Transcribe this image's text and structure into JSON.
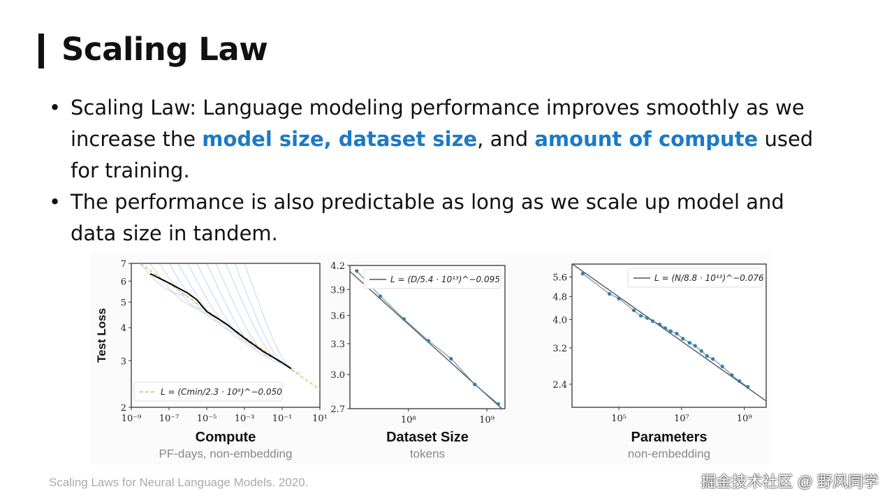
{
  "slide": {
    "title": "Scaling Law",
    "bullets": [
      {
        "pre": "Scaling Law: Language modeling performance improves smoothly as we increase the ",
        "hl1": "model size, dataset size",
        "mid": ", and ",
        "hl2": "amount of compute",
        "post": " used for training."
      },
      {
        "pre": "The performance is also predictable as long as we scale up model and data size in tandem."
      }
    ],
    "footer": "Scaling Laws for Neural Language Models. 2020.",
    "watermark": "掘金技术社区 @ 野风同学",
    "highlight_color": "#1a7ac8"
  },
  "chart_data": [
    {
      "type": "line",
      "title": "",
      "xlabel": "Compute",
      "xsublabel": "PF-days, non-embedding",
      "ylabel": "Test Loss",
      "xscale": "log",
      "yscale": "log",
      "xlim": [
        1e-09,
        10
      ],
      "ylim": [
        2,
        7
      ],
      "xticks": [
        {
          "v": 1e-09,
          "label": "10⁻⁹"
        },
        {
          "v": 1e-07,
          "label": "10⁻⁷"
        },
        {
          "v": 1e-05,
          "label": "10⁻⁵"
        },
        {
          "v": 0.001,
          "label": "10⁻³"
        },
        {
          "v": 0.1,
          "label": "10⁻¹"
        },
        {
          "v": 10,
          "label": "10¹"
        }
      ],
      "yticks": [
        {
          "v": 2,
          "label": "2"
        },
        {
          "v": 3,
          "label": "3"
        },
        {
          "v": 4,
          "label": "4"
        },
        {
          "v": 5,
          "label": "5"
        },
        {
          "v": 6,
          "label": "6"
        },
        {
          "v": 7,
          "label": "7"
        }
      ],
      "legend": {
        "label": "L = (Cmin/2.3 · 10⁸)^−0.050",
        "placement": "lower-left"
      },
      "fit": {
        "a": 230000000.0,
        "exp": -0.05,
        "color": "#e8b84a"
      },
      "frontier": {
        "x": [
          1e-08,
          1e-07,
          1e-06,
          3e-06,
          1e-05,
          0.0001,
          0.001,
          0.01,
          0.1,
          0.3
        ],
        "y": [
          6.4,
          5.9,
          5.4,
          5.1,
          4.6,
          4.15,
          3.65,
          3.25,
          2.95,
          2.8
        ],
        "color": "#000000"
      },
      "learning_curves": [
        [
          3e-09,
          7,
          1e-06,
          5.3
        ],
        [
          1e-08,
          7,
          1e-05,
          4.7
        ],
        [
          3e-08,
          7,
          5e-05,
          4.4
        ],
        [
          1e-07,
          7,
          0.0002,
          4.1
        ],
        [
          3e-07,
          7,
          0.0008,
          3.8
        ],
        [
          1e-06,
          7,
          0.003,
          3.5
        ],
        [
          3e-06,
          7,
          0.01,
          3.3
        ],
        [
          1e-05,
          7,
          0.03,
          3.1
        ],
        [
          3e-05,
          7,
          0.1,
          2.95
        ],
        [
          0.0001,
          7,
          0.3,
          2.85
        ],
        [
          0.0003,
          7,
          0.5,
          2.8
        ],
        [
          0.001,
          7,
          1,
          2.7
        ]
      ],
      "curve_color": "#8fb4d8"
    },
    {
      "type": "line",
      "xlabel": "Dataset Size",
      "xsublabel": "tokens",
      "xscale": "log",
      "yscale": "log",
      "xlim": [
        18000000.0,
        1700000000.0
      ],
      "ylim": [
        2.7,
        4.2
      ],
      "xticks": [
        {
          "v": 100000000.0,
          "label": "10⁸"
        },
        {
          "v": 1000000000.0,
          "label": "10⁹"
        }
      ],
      "yticks": [
        {
          "v": 2.7,
          "label": "2.7"
        },
        {
          "v": 3.0,
          "label": "3.0"
        },
        {
          "v": 3.3,
          "label": "3.3"
        },
        {
          "v": 3.6,
          "label": "3.6"
        },
        {
          "v": 3.9,
          "label": "3.9"
        },
        {
          "v": 4.2,
          "label": "4.2"
        }
      ],
      "legend": {
        "label": "L = (D/5.4 · 10¹³)^−0.095",
        "placement": "top-right"
      },
      "fit": {
        "a": 54000000000000.0,
        "exp": -0.095,
        "color": "#555555"
      },
      "points": {
        "x": [
          22000000.0,
          44000000.0,
          88000000.0,
          180000000.0,
          350000000.0,
          700000000.0,
          1400000000.0
        ],
        "y": [
          4.13,
          3.82,
          3.56,
          3.33,
          3.15,
          2.91,
          2.74
        ],
        "color": "#3a7ca5"
      }
    },
    {
      "type": "line",
      "xlabel": "Parameters",
      "xsublabel": "non-embedding",
      "xscale": "log",
      "yscale": "log",
      "xlim": [
        3200.0,
        5000000000.0
      ],
      "ylim": [
        2.0,
        6.2
      ],
      "xticks": [
        {
          "v": 100000.0,
          "label": "10⁵"
        },
        {
          "v": 10000000.0,
          "label": "10⁷"
        },
        {
          "v": 1000000000.0,
          "label": "10⁹"
        }
      ],
      "yticks": [
        {
          "v": 2.4,
          "label": "2.4"
        },
        {
          "v": 3.2,
          "label": "3.2"
        },
        {
          "v": 4.0,
          "label": "4.0"
        },
        {
          "v": 4.8,
          "label": "4.8"
        },
        {
          "v": 5.6,
          "label": "5.6"
        }
      ],
      "legend": {
        "label": "L = (N/8.8 · 10¹³)^−0.076",
        "placement": "top-right"
      },
      "fit": {
        "a": 88000000000000.0,
        "exp": -0.076,
        "color": "#555555"
      },
      "points": {
        "x": [
          7000.0,
          50000.0,
          100000.0,
          300000.0,
          500000.0,
          800000.0,
          1200000.0,
          2000000.0,
          3000000.0,
          4500000.0,
          7000000.0,
          11000000.0,
          18000000.0,
          27000000.0,
          43000000.0,
          65000000.0,
          100000000.0,
          200000000.0,
          400000000.0,
          700000000.0,
          1300000000.0
        ],
        "y": [
          5.75,
          4.9,
          4.72,
          4.3,
          4.12,
          4.05,
          3.95,
          3.85,
          3.74,
          3.65,
          3.58,
          3.44,
          3.33,
          3.25,
          3.12,
          3.0,
          2.93,
          2.76,
          2.58,
          2.46,
          2.35
        ],
        "color": "#3a7ca5"
      }
    }
  ]
}
